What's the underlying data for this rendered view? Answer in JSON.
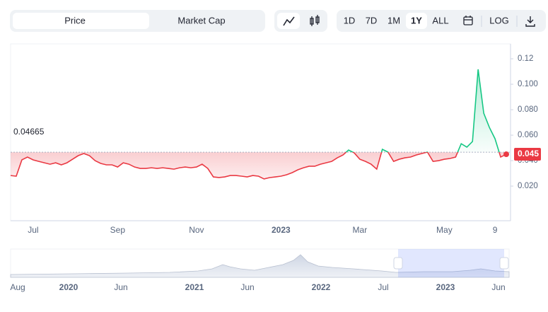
{
  "toolbar": {
    "tabs": [
      "Price",
      "Market Cap"
    ],
    "ranges": [
      "1D",
      "7D",
      "1M",
      "1Y",
      "ALL"
    ],
    "scale": "LOG",
    "active_tab": "Price",
    "active_range": "1Y"
  },
  "chart_data": {
    "type": "line",
    "categories": [
      null,
      null,
      null,
      null,
      "Jul",
      null,
      null,
      null,
      null,
      null,
      null,
      null,
      null,
      null,
      null,
      null,
      null,
      null,
      null,
      "Sep",
      null,
      null,
      null,
      null,
      null,
      null,
      null,
      null,
      null,
      null,
      null,
      null,
      null,
      "Nov",
      null,
      null,
      null,
      null,
      null,
      null,
      null,
      null,
      null,
      null,
      null,
      null,
      null,
      null,
      "2023",
      null,
      null,
      null,
      null,
      null,
      null,
      null,
      null,
      null,
      null,
      null,
      null,
      null,
      "Mar",
      null,
      null,
      null,
      null,
      null,
      null,
      null,
      null,
      null,
      null,
      null,
      null,
      null,
      null,
      "May",
      null,
      null,
      null,
      null,
      null,
      null,
      null,
      null,
      "9",
      null,
      null
    ],
    "values": [
      0.0283,
      0.0278,
      0.0406,
      0.0428,
      0.0406,
      0.0394,
      0.0383,
      0.0372,
      0.0383,
      0.0367,
      0.0383,
      0.0411,
      0.0439,
      0.0456,
      0.0439,
      0.04,
      0.0378,
      0.0367,
      0.0367,
      0.035,
      0.0383,
      0.0372,
      0.035,
      0.0339,
      0.0339,
      0.0344,
      0.0339,
      0.0344,
      0.0339,
      0.0333,
      0.0344,
      0.035,
      0.0344,
      0.035,
      0.0372,
      0.0339,
      0.0272,
      0.0267,
      0.0272,
      0.0283,
      0.0283,
      0.0278,
      0.0272,
      0.0283,
      0.0278,
      0.0256,
      0.0267,
      0.0272,
      0.0278,
      0.0289,
      0.0306,
      0.0328,
      0.0344,
      0.0356,
      0.0356,
      0.0372,
      0.0383,
      0.0394,
      0.0422,
      0.0444,
      0.0483,
      0.0461,
      0.0411,
      0.0394,
      0.0372,
      0.0333,
      0.0489,
      0.0467,
      0.0394,
      0.0411,
      0.0422,
      0.0428,
      0.0444,
      0.0456,
      0.0467,
      0.0394,
      0.04,
      0.0411,
      0.0417,
      0.0428,
      0.0533,
      0.0506,
      0.055,
      0.1117,
      0.0772,
      0.0661,
      0.0572,
      0.0428,
      0.045
    ],
    "value_labels": [
      null,
      null,
      null,
      null,
      null,
      null,
      null,
      null,
      null,
      null,
      null,
      null,
      null,
      null,
      null,
      null,
      null,
      null,
      null,
      null,
      null,
      null,
      null,
      null,
      null,
      null,
      null,
      null,
      null,
      null,
      null,
      null,
      null,
      null,
      null,
      null,
      null,
      null,
      null,
      null,
      null,
      null,
      null,
      null,
      null,
      null,
      null,
      null,
      null,
      null,
      null,
      null,
      null,
      null,
      null,
      null,
      null,
      null,
      null,
      null,
      null,
      null,
      null,
      null,
      null,
      null,
      null,
      null,
      null,
      null,
      null,
      null,
      null,
      null,
      null,
      null,
      null,
      null,
      null,
      null,
      null,
      null,
      null,
      null,
      null,
      null,
      null,
      null,
      "0.045"
    ],
    "reference_line": 0.04665,
    "color_above": "#16c784",
    "color_below": "#ea3943",
    "ylim": [
      -0.0072,
      0.1317
    ],
    "yticks": [
      {
        "value": 0.02,
        "label": "0.020"
      },
      {
        "value": 0.04,
        "label": "0.040"
      },
      {
        "value": 0.06,
        "label": "0.060"
      },
      {
        "value": 0.08,
        "label": "0.080"
      },
      {
        "value": 0.1,
        "label": "0.100"
      },
      0.12
    ]
  },
  "navigator": {
    "labels": [
      "Aug",
      "2020",
      "Jun",
      "2021",
      "Jun",
      "2022",
      "Jul",
      "2023",
      "Jun"
    ]
  }
}
